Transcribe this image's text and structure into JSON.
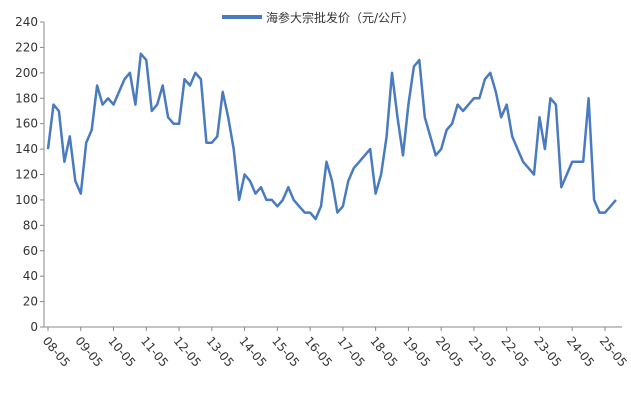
{
  "chart_data": {
    "type": "line",
    "categories": [
      "08-05",
      null,
      null,
      null,
      null,
      null,
      "09-05",
      null,
      null,
      null,
      null,
      null,
      "10-05",
      null,
      null,
      null,
      null,
      null,
      "11-05",
      null,
      null,
      null,
      null,
      null,
      "12-05",
      null,
      null,
      null,
      null,
      null,
      "13-05",
      null,
      null,
      null,
      null,
      null,
      "14-05",
      null,
      null,
      null,
      null,
      null,
      "15-05",
      null,
      null,
      null,
      null,
      null,
      "16-05",
      null,
      null,
      null,
      null,
      null,
      "17-05",
      null,
      null,
      null,
      null,
      null,
      "18-05",
      null,
      null,
      null,
      null,
      null,
      "19-05",
      null,
      null,
      null,
      null,
      null,
      "20-05",
      null,
      null,
      null,
      null,
      null,
      "21-05",
      null,
      null,
      null,
      null,
      null,
      "22-05",
      null,
      null,
      null,
      null,
      null,
      "23-05",
      null,
      null,
      null,
      null,
      null,
      "24-05",
      null,
      null,
      null,
      null,
      null,
      "25-05",
      null,
      null
    ],
    "series": [
      {
        "name": "海参大宗批发价（元/公斤）",
        "color": "#4a7bc0",
        "values": [
          140,
          175,
          170,
          130,
          150,
          115,
          105,
          145,
          155,
          190,
          175,
          180,
          175,
          185,
          195,
          200,
          175,
          215,
          210,
          170,
          175,
          190,
          165,
          160,
          160,
          195,
          190,
          200,
          195,
          145,
          145,
          150,
          185,
          165,
          140,
          100,
          120,
          115,
          105,
          110,
          100,
          100,
          95,
          100,
          110,
          100,
          95,
          90,
          90,
          85,
          95,
          130,
          115,
          90,
          95,
          115,
          125,
          130,
          135,
          140,
          105,
          120,
          150,
          200,
          165,
          135,
          175,
          205,
          210,
          165,
          150,
          135,
          140,
          155,
          160,
          175,
          170,
          175,
          180,
          180,
          195,
          200,
          185,
          165,
          175,
          150,
          140,
          130,
          125,
          120,
          165,
          140,
          180,
          175,
          110,
          120,
          130,
          130,
          130,
          180,
          100,
          90,
          90,
          95,
          100
        ]
      }
    ],
    "ylim": [
      0,
      240
    ],
    "yticks": [
      0,
      20,
      40,
      60,
      80,
      100,
      120,
      140,
      160,
      180,
      200,
      220,
      240
    ],
    "grid": false,
    "legend": "top"
  }
}
